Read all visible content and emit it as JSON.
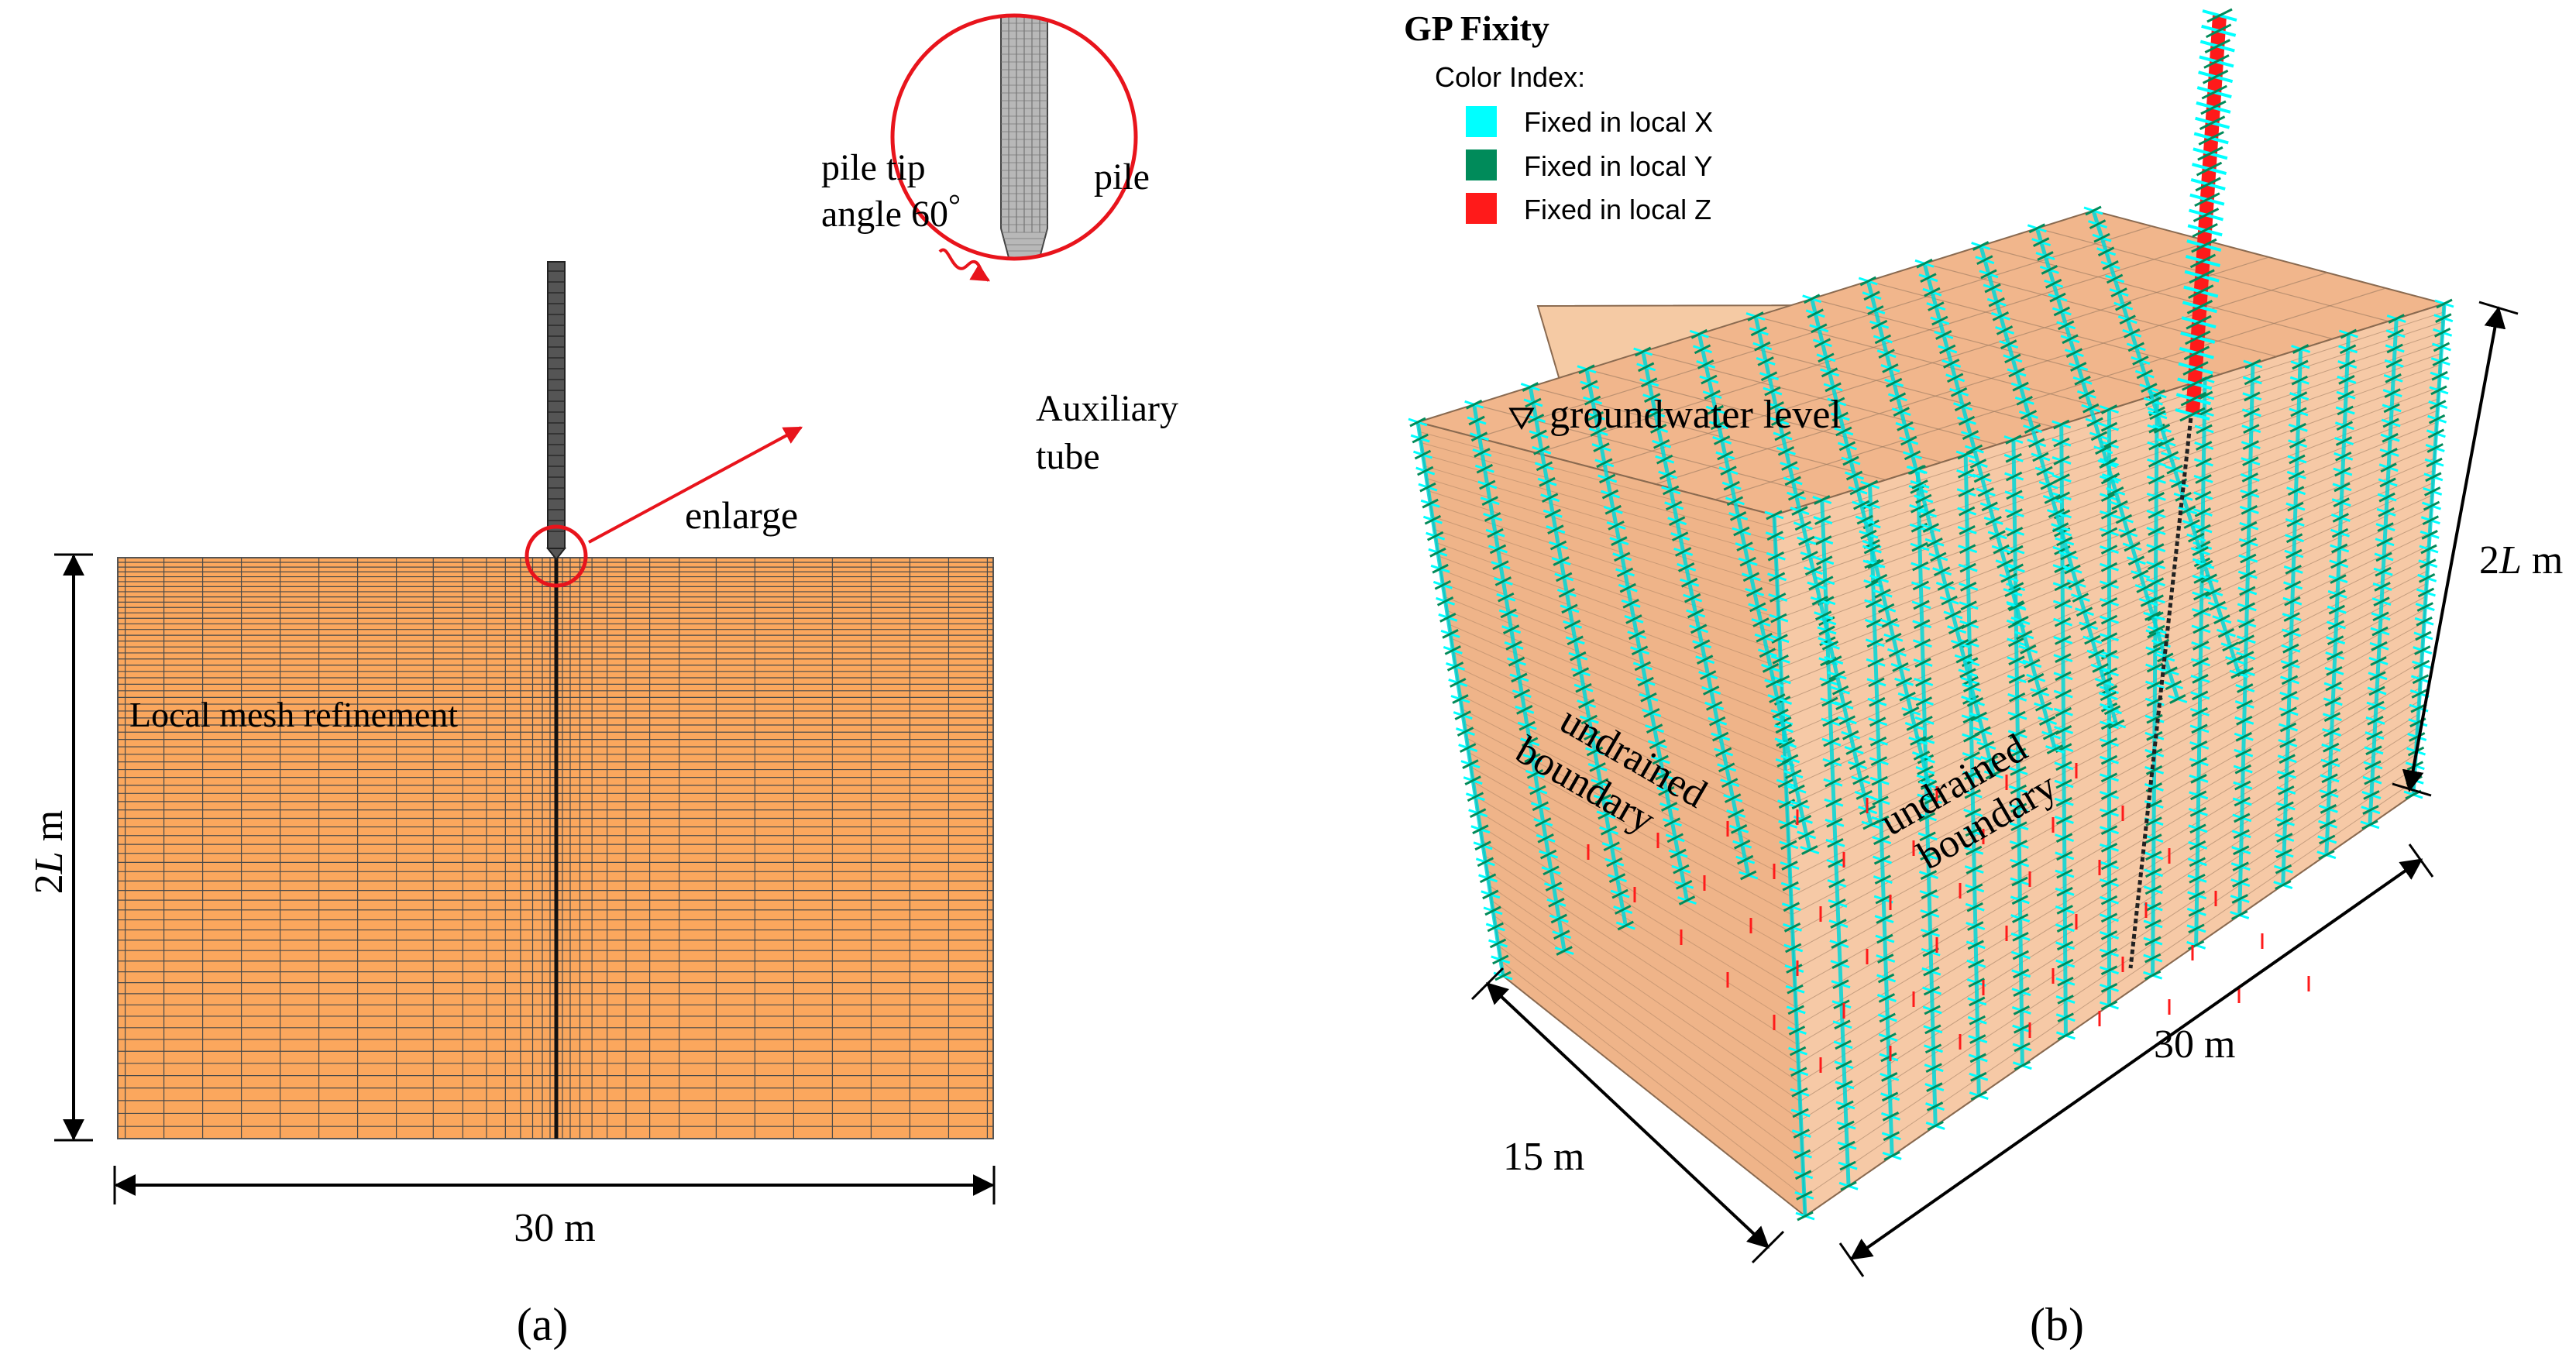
{
  "panel_a": {
    "label_local_mesh": "Local mesh refinement",
    "label_enlarge": "enlarge",
    "dim_width": "30 m",
    "dim_height_prefix": "2",
    "dim_height_italic": "L",
    "dim_height_suffix": " m",
    "inset": {
      "label_pile_tip": "pile tip",
      "label_angle": "angle 60",
      "label_degree": "°",
      "label_pile": "pile",
      "label_aux_1": "Auxiliary",
      "label_aux_2": "tube"
    },
    "caption": "(a)"
  },
  "panel_b": {
    "legend": {
      "title": "GP Fixity",
      "subtitle": "Color Index:",
      "items": [
        {
          "label": "Fixed in local X",
          "color": "#00ffff"
        },
        {
          "label": "Fixed in local Y",
          "color": "#008b5a"
        },
        {
          "label": "Fixed in local Z",
          "color": "#ff1a1a"
        }
      ]
    },
    "label_groundwater": "groundwater level",
    "label_boundary_left_1": "undrained",
    "label_boundary_left_2": "boundary",
    "label_boundary_right_1": "undrained",
    "label_boundary_right_2": "boundary",
    "dim_height_prefix": "2",
    "dim_height_italic": "L",
    "dim_height_suffix": " m",
    "dim_length": "30 m",
    "dim_depth": "15 m",
    "caption": "(b)"
  },
  "colors": {
    "soil": "#fba75d",
    "soil_3d": "#f4b88a",
    "mesh_line": "#3a3a3a",
    "pile": "#555555",
    "inset_circle": "#e8141c",
    "arrow": "#e8141c"
  }
}
